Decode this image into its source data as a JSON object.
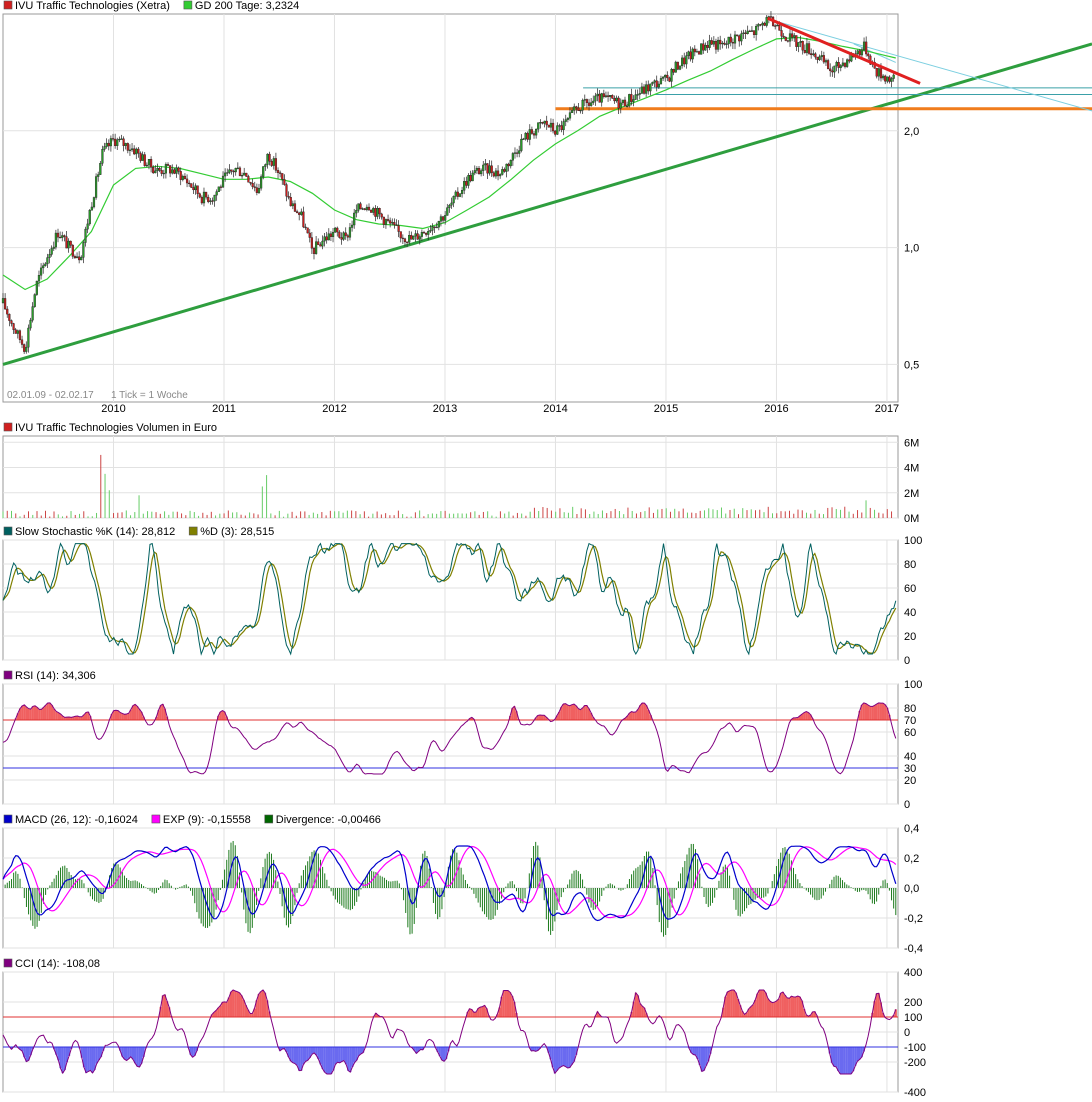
{
  "chart_data": [
    {
      "type": "candlestick",
      "panel": "price",
      "legend": [
        {
          "label": "IVU Traffic Technologies (Xetra)",
          "color": "#d02020"
        },
        {
          "label": "GD 200 Tage: 3,2324",
          "color": "#33cc33"
        }
      ],
      "date_range_label": "02.01.09 - 02.02.17",
      "tick_note": "1 Tick = 1 Woche",
      "x_ticks": [
        "2010",
        "2011",
        "2012",
        "2013",
        "2014",
        "2015",
        "2016",
        "2017"
      ],
      "y_ticks": [
        "2,0",
        "1,0",
        "0,5"
      ],
      "y_tick_values": [
        2.0,
        1.0,
        0.5
      ],
      "scale": "log",
      "ylim": [
        0.4,
        4.0
      ],
      "price_path": [
        [
          2009.0,
          0.72
        ],
        [
          2009.1,
          0.62
        ],
        [
          2009.2,
          0.55
        ],
        [
          2009.3,
          0.8
        ],
        [
          2009.4,
          0.95
        ],
        [
          2009.5,
          1.1
        ],
        [
          2009.6,
          1.0
        ],
        [
          2009.7,
          0.95
        ],
        [
          2009.8,
          1.3
        ],
        [
          2009.9,
          1.75
        ],
        [
          2010.0,
          1.9
        ],
        [
          2010.1,
          1.85
        ],
        [
          2010.2,
          1.78
        ],
        [
          2010.3,
          1.65
        ],
        [
          2010.4,
          1.58
        ],
        [
          2010.5,
          1.6
        ],
        [
          2010.6,
          1.55
        ],
        [
          2010.7,
          1.45
        ],
        [
          2010.8,
          1.35
        ],
        [
          2010.9,
          1.35
        ],
        [
          2011.0,
          1.5
        ],
        [
          2011.1,
          1.6
        ],
        [
          2011.2,
          1.55
        ],
        [
          2011.3,
          1.4
        ],
        [
          2011.4,
          1.75
        ],
        [
          2011.5,
          1.55
        ],
        [
          2011.6,
          1.3
        ],
        [
          2011.7,
          1.2
        ],
        [
          2011.8,
          0.98
        ],
        [
          2011.9,
          1.05
        ],
        [
          2012.0,
          1.1
        ],
        [
          2012.1,
          1.05
        ],
        [
          2012.2,
          1.25
        ],
        [
          2012.3,
          1.3
        ],
        [
          2012.4,
          1.22
        ],
        [
          2012.5,
          1.15
        ],
        [
          2012.6,
          1.08
        ],
        [
          2012.7,
          1.05
        ],
        [
          2012.8,
          1.1
        ],
        [
          2012.9,
          1.15
        ],
        [
          2013.0,
          1.22
        ],
        [
          2013.1,
          1.35
        ],
        [
          2013.2,
          1.5
        ],
        [
          2013.3,
          1.58
        ],
        [
          2013.4,
          1.6
        ],
        [
          2013.5,
          1.55
        ],
        [
          2013.6,
          1.7
        ],
        [
          2013.7,
          1.9
        ],
        [
          2013.8,
          2.0
        ],
        [
          2013.9,
          2.1
        ],
        [
          2014.0,
          2.0
        ],
        [
          2014.1,
          2.1
        ],
        [
          2014.2,
          2.3
        ],
        [
          2014.3,
          2.35
        ],
        [
          2014.4,
          2.42
        ],
        [
          2014.5,
          2.4
        ],
        [
          2014.6,
          2.35
        ],
        [
          2014.7,
          2.45
        ],
        [
          2014.8,
          2.55
        ],
        [
          2014.9,
          2.65
        ],
        [
          2015.0,
          2.7
        ],
        [
          2015.1,
          2.95
        ],
        [
          2015.2,
          3.1
        ],
        [
          2015.3,
          3.25
        ],
        [
          2015.4,
          3.4
        ],
        [
          2015.5,
          3.3
        ],
        [
          2015.6,
          3.45
        ],
        [
          2015.7,
          3.55
        ],
        [
          2015.8,
          3.6
        ],
        [
          2015.9,
          3.85
        ],
        [
          2016.0,
          3.75
        ],
        [
          2016.1,
          3.5
        ],
        [
          2016.2,
          3.35
        ],
        [
          2016.3,
          3.25
        ],
        [
          2016.4,
          3.05
        ],
        [
          2016.5,
          2.85
        ],
        [
          2016.6,
          3.0
        ],
        [
          2016.7,
          3.15
        ],
        [
          2016.8,
          3.3
        ],
        [
          2016.9,
          2.85
        ],
        [
          2017.0,
          2.75
        ],
        [
          2017.08,
          2.7
        ]
      ],
      "gd200_path": [
        [
          2009.0,
          0.85
        ],
        [
          2009.2,
          0.78
        ],
        [
          2009.4,
          0.83
        ],
        [
          2009.6,
          0.95
        ],
        [
          2009.8,
          1.1
        ],
        [
          2010.0,
          1.45
        ],
        [
          2010.2,
          1.6
        ],
        [
          2010.4,
          1.62
        ],
        [
          2010.6,
          1.6
        ],
        [
          2010.8,
          1.55
        ],
        [
          2011.0,
          1.5
        ],
        [
          2011.2,
          1.5
        ],
        [
          2011.4,
          1.52
        ],
        [
          2011.6,
          1.48
        ],
        [
          2011.8,
          1.38
        ],
        [
          2012.0,
          1.25
        ],
        [
          2012.2,
          1.18
        ],
        [
          2012.4,
          1.15
        ],
        [
          2012.6,
          1.14
        ],
        [
          2012.8,
          1.12
        ],
        [
          2013.0,
          1.16
        ],
        [
          2013.2,
          1.25
        ],
        [
          2013.4,
          1.35
        ],
        [
          2013.6,
          1.5
        ],
        [
          2013.8,
          1.68
        ],
        [
          2014.0,
          1.85
        ],
        [
          2014.2,
          2.0
        ],
        [
          2014.4,
          2.18
        ],
        [
          2014.6,
          2.3
        ],
        [
          2014.8,
          2.42
        ],
        [
          2015.0,
          2.55
        ],
        [
          2015.2,
          2.7
        ],
        [
          2015.4,
          2.85
        ],
        [
          2015.6,
          3.05
        ],
        [
          2015.8,
          3.25
        ],
        [
          2016.0,
          3.45
        ],
        [
          2016.2,
          3.48
        ],
        [
          2016.4,
          3.4
        ],
        [
          2016.6,
          3.3
        ],
        [
          2016.8,
          3.22
        ],
        [
          2017.0,
          3.12
        ],
        [
          2017.08,
          3.08
        ]
      ]
    },
    {
      "type": "bar",
      "panel": "volume",
      "legend": [
        {
          "label": "IVU Traffic Technologies Volumen in Euro",
          "color": "#d02020"
        }
      ],
      "y_ticks": [
        "6M",
        "4M",
        "2M",
        "0M"
      ],
      "y_tick_values": [
        6,
        4,
        2,
        0
      ],
      "ylim": [
        0,
        6.5
      ]
    },
    {
      "type": "line",
      "panel": "stochastic",
      "legend": [
        {
          "label": "Slow Stochastic %K (14): 28,812",
          "color": "#006060"
        },
        {
          "label": "%D (3): 28,515",
          "color": "#808000"
        }
      ],
      "y_ticks": [
        "100",
        "80",
        "60",
        "40",
        "20",
        "0"
      ],
      "y_tick_values": [
        100,
        80,
        60,
        40,
        20,
        0
      ],
      "ylim": [
        0,
        100
      ]
    },
    {
      "type": "line",
      "panel": "rsi",
      "legend": [
        {
          "label": "RSI (14): 34,306",
          "color": "#800080"
        }
      ],
      "y_ticks": [
        "100",
        "80",
        "60",
        "40",
        "20",
        "0"
      ],
      "y_tick_values": [
        100,
        80,
        60,
        40,
        20,
        0
      ],
      "ref_labels": [
        "70",
        "30"
      ],
      "ref_values": [
        70,
        30
      ],
      "ylim": [
        0,
        100
      ]
    },
    {
      "type": "line",
      "panel": "macd",
      "legend": [
        {
          "label": "MACD (26, 12): -0,16024",
          "color": "#0000cc"
        },
        {
          "label": "EXP (9): -0,15558",
          "color": "#ff00ff"
        },
        {
          "label": "Divergence: -0,00466",
          "color": "#006600"
        }
      ],
      "y_ticks": [
        "0,4",
        "0,2",
        "0,0",
        "-0,2",
        "-0,4"
      ],
      "y_tick_values": [
        0.4,
        0.2,
        0.0,
        -0.2,
        -0.4
      ],
      "ylim": [
        -0.4,
        0.4
      ]
    },
    {
      "type": "line",
      "panel": "cci",
      "legend": [
        {
          "label": "CCI (14): -108,08",
          "color": "#800080"
        }
      ],
      "y_ticks": [
        "400",
        "200",
        "0",
        "-200",
        "-400"
      ],
      "y_tick_values": [
        400,
        200,
        0,
        -200,
        -400
      ],
      "ref_labels": [
        "100",
        "-100"
      ],
      "ref_values": [
        100,
        -100
      ],
      "ylim": [
        -400,
        400
      ]
    }
  ],
  "colors": {
    "up": "#2a9a2a",
    "down": "#c81e1e",
    "grid": "#e2e2e2",
    "axis": "#999999",
    "trend_green": "#2e9e3e",
    "trend_red": "#e02020",
    "support_orange": "#f07c1c",
    "channel_teal": "#3aa0a8"
  }
}
